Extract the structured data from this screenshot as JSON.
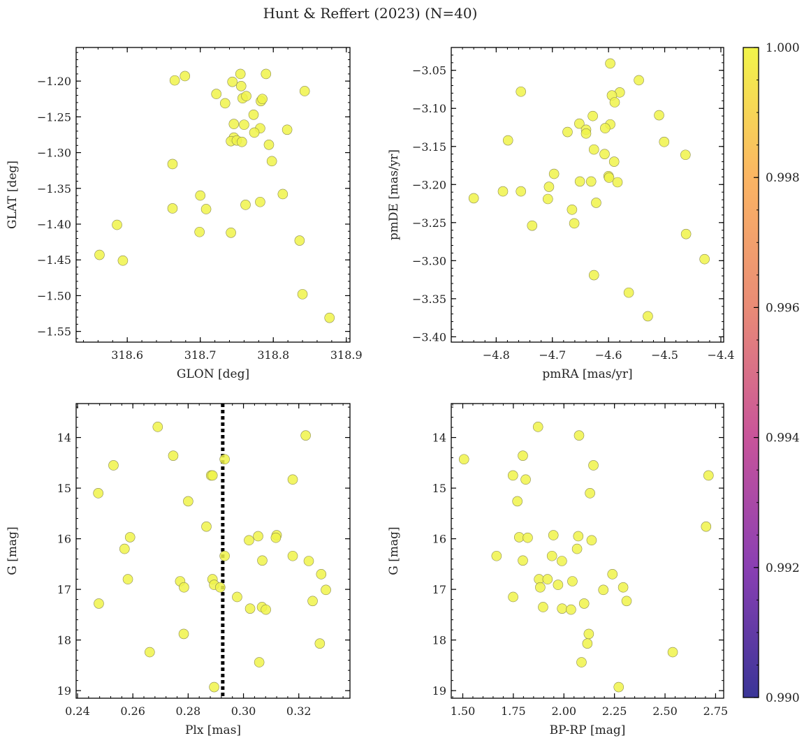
{
  "figure": {
    "title": "Hunt & Reffert (2023) (N=40)",
    "colormap": {
      "name": "plasma",
      "min": 0.99,
      "max": 1.0,
      "ticks": [
        "0.990",
        "0.992",
        "0.994",
        "0.996",
        "0.998",
        "1.000"
      ],
      "stops": [
        "#3a3597",
        "#8a3fb3",
        "#c8549a",
        "#e98b76",
        "#fbb563",
        "#f2f54a"
      ]
    },
    "marker_color": "#f0f34a",
    "marker_edge": "#8a8a50",
    "line_color": "#000000"
  },
  "chart_data": [
    {
      "type": "scatter",
      "title": "",
      "xlabel": "GLON [deg]",
      "ylabel": "GLAT [deg]",
      "xlim": [
        318.53,
        318.905
      ],
      "ylim": [
        -1.565,
        -1.153
      ],
      "xticks": [
        318.6,
        318.7,
        318.8,
        318.9
      ],
      "xticklabels": [
        "318.6",
        "318.7",
        "318.8",
        "318.9"
      ],
      "yticks": [
        -1.55,
        -1.5,
        -1.45,
        -1.4,
        -1.35,
        -1.3,
        -1.25,
        -1.2
      ],
      "yticklabels": [
        "−1.55",
        "−1.50",
        "−1.45",
        "−1.40",
        "−1.35",
        "−1.30",
        "−1.25",
        "−1.20"
      ],
      "points": [
        [
          318.665,
          -1.199
        ],
        [
          318.679,
          -1.193
        ],
        [
          318.744,
          -1.201
        ],
        [
          318.755,
          -1.19
        ],
        [
          318.79,
          -1.19
        ],
        [
          318.843,
          -1.214
        ],
        [
          318.722,
          -1.218
        ],
        [
          318.756,
          -1.207
        ],
        [
          318.758,
          -1.224
        ],
        [
          318.763,
          -1.221
        ],
        [
          318.783,
          -1.228
        ],
        [
          318.734,
          -1.231
        ],
        [
          318.773,
          -1.247
        ],
        [
          318.746,
          -1.26
        ],
        [
          318.76,
          -1.261
        ],
        [
          318.782,
          -1.266
        ],
        [
          318.819,
          -1.268
        ],
        [
          318.774,
          -1.272
        ],
        [
          318.746,
          -1.279
        ],
        [
          318.742,
          -1.284
        ],
        [
          318.75,
          -1.283
        ],
        [
          318.757,
          -1.285
        ],
        [
          318.794,
          -1.289
        ],
        [
          318.798,
          -1.312
        ],
        [
          318.662,
          -1.316
        ],
        [
          318.7,
          -1.36
        ],
        [
          318.813,
          -1.358
        ],
        [
          318.782,
          -1.369
        ],
        [
          318.762,
          -1.373
        ],
        [
          318.662,
          -1.378
        ],
        [
          318.708,
          -1.379
        ],
        [
          318.586,
          -1.401
        ],
        [
          318.699,
          -1.411
        ],
        [
          318.742,
          -1.412
        ],
        [
          318.836,
          -1.423
        ],
        [
          318.562,
          -1.443
        ],
        [
          318.594,
          -1.451
        ],
        [
          318.84,
          -1.498
        ],
        [
          318.877,
          -1.531
        ],
        [
          318.785,
          -1.225
        ]
      ]
    },
    {
      "type": "scatter",
      "title": "",
      "xlabel": "pmRA [mas/yr]",
      "ylabel": "pmDE [mas/yr]",
      "xlim": [
        -4.88,
        -4.395
      ],
      "ylim": [
        -3.407,
        -3.02
      ],
      "xticks": [
        -4.8,
        -4.7,
        -4.6,
        -4.5,
        -4.4
      ],
      "xticklabels": [
        "−4.8",
        "−4.7",
        "−4.6",
        "−4.5",
        "−4.4"
      ],
      "yticks": [
        -3.4,
        -3.35,
        -3.3,
        -3.25,
        -3.2,
        -3.15,
        -3.1,
        -3.05
      ],
      "yticklabels": [
        "−3.40",
        "−3.35",
        "−3.30",
        "−3.25",
        "−3.20",
        "−3.15",
        "−3.10",
        "−3.05"
      ],
      "points": [
        [
          -4.597,
          -3.041
        ],
        [
          -4.546,
          -3.063
        ],
        [
          -4.756,
          -3.078
        ],
        [
          -4.58,
          -3.079
        ],
        [
          -4.594,
          -3.083
        ],
        [
          -4.589,
          -3.092
        ],
        [
          -4.628,
          -3.11
        ],
        [
          -4.51,
          -3.109
        ],
        [
          -4.652,
          -3.12
        ],
        [
          -4.597,
          -3.121
        ],
        [
          -4.606,
          -3.126
        ],
        [
          -4.64,
          -3.128
        ],
        [
          -4.673,
          -3.131
        ],
        [
          -4.64,
          -3.133
        ],
        [
          -4.779,
          -3.142
        ],
        [
          -4.501,
          -3.144
        ],
        [
          -4.626,
          -3.154
        ],
        [
          -4.607,
          -3.16
        ],
        [
          -4.463,
          -3.161
        ],
        [
          -4.59,
          -3.17
        ],
        [
          -4.697,
          -3.186
        ],
        [
          -4.6,
          -3.189
        ],
        [
          -4.599,
          -3.191
        ],
        [
          -4.651,
          -3.196
        ],
        [
          -4.631,
          -3.196
        ],
        [
          -4.584,
          -3.197
        ],
        [
          -4.706,
          -3.203
        ],
        [
          -4.788,
          -3.209
        ],
        [
          -4.756,
          -3.209
        ],
        [
          -4.84,
          -3.218
        ],
        [
          -4.708,
          -3.219
        ],
        [
          -4.622,
          -3.224
        ],
        [
          -4.665,
          -3.233
        ],
        [
          -4.661,
          -3.251
        ],
        [
          -4.736,
          -3.254
        ],
        [
          -4.462,
          -3.265
        ],
        [
          -4.429,
          -3.298
        ],
        [
          -4.626,
          -3.319
        ],
        [
          -4.564,
          -3.342
        ],
        [
          -4.53,
          -3.373
        ]
      ]
    },
    {
      "type": "scatter",
      "title": "",
      "xlabel": "Plx [mas]",
      "ylabel": "G [mag]",
      "xlim": [
        0.2395,
        0.3385
      ],
      "ylim": [
        19.15,
        13.33
      ],
      "xticks": [
        0.24,
        0.26,
        0.28,
        0.3,
        0.32
      ],
      "xticklabels": [
        "0.24",
        "0.26",
        "0.28",
        "0.30",
        "0.32"
      ],
      "yticks": [
        14,
        15,
        16,
        17,
        18,
        19
      ],
      "yticklabels": [
        "14",
        "15",
        "16",
        "17",
        "18",
        "19"
      ],
      "vline": 0.2925,
      "points": [
        [
          0.269,
          13.79
        ],
        [
          0.3225,
          13.96
        ],
        [
          0.2746,
          14.36
        ],
        [
          0.2932,
          14.43
        ],
        [
          0.253,
          14.55
        ],
        [
          0.2883,
          14.75
        ],
        [
          0.2888,
          14.75
        ],
        [
          0.3178,
          14.83
        ],
        [
          0.2475,
          15.1
        ],
        [
          0.28,
          15.26
        ],
        [
          0.2866,
          15.76
        ],
        [
          0.312,
          15.93
        ],
        [
          0.3053,
          15.95
        ],
        [
          0.259,
          15.97
        ],
        [
          0.3117,
          15.98
        ],
        [
          0.302,
          16.03
        ],
        [
          0.257,
          16.2
        ],
        [
          0.2932,
          16.34
        ],
        [
          0.3178,
          16.34
        ],
        [
          0.3068,
          16.43
        ],
        [
          0.3236,
          16.44
        ],
        [
          0.3281,
          16.7
        ],
        [
          0.2582,
          16.8
        ],
        [
          0.2888,
          16.8
        ],
        [
          0.2771,
          16.84
        ],
        [
          0.2894,
          16.91
        ],
        [
          0.2916,
          16.96
        ],
        [
          0.2785,
          16.96
        ],
        [
          0.3298,
          17.01
        ],
        [
          0.2977,
          17.15
        ],
        [
          0.325,
          17.23
        ],
        [
          0.2477,
          17.28
        ],
        [
          0.3067,
          17.35
        ],
        [
          0.3024,
          17.38
        ],
        [
          0.3081,
          17.4
        ],
        [
          0.2784,
          17.88
        ],
        [
          0.3276,
          18.07
        ],
        [
          0.2661,
          18.24
        ],
        [
          0.3057,
          18.44
        ],
        [
          0.2894,
          18.93
        ]
      ]
    },
    {
      "type": "scatter",
      "title": "",
      "xlabel": "BP-RP [mag]",
      "ylabel": "G [mag]",
      "xlim": [
        1.443,
        2.79
      ],
      "ylim": [
        19.15,
        13.33
      ],
      "xticks": [
        1.5,
        1.75,
        2.0,
        2.25,
        2.5,
        2.75
      ],
      "xticklabels": [
        "1.50",
        "1.75",
        "2.00",
        "2.25",
        "2.50",
        "2.75"
      ],
      "yticks": [
        14,
        15,
        16,
        17,
        18,
        19
      ],
      "yticklabels": [
        "14",
        "15",
        "16",
        "17",
        "18",
        "19"
      ],
      "points": [
        [
          1.872,
          13.79
        ],
        [
          2.075,
          13.96
        ],
        [
          1.797,
          14.36
        ],
        [
          1.506,
          14.43
        ],
        [
          2.146,
          14.55
        ],
        [
          1.748,
          14.75
        ],
        [
          2.715,
          14.75
        ],
        [
          1.811,
          14.83
        ],
        [
          2.129,
          15.1
        ],
        [
          1.77,
          15.26
        ],
        [
          2.703,
          15.76
        ],
        [
          1.948,
          15.93
        ],
        [
          2.071,
          15.95
        ],
        [
          1.779,
          15.97
        ],
        [
          1.821,
          15.98
        ],
        [
          2.137,
          16.03
        ],
        [
          2.065,
          16.2
        ],
        [
          1.667,
          16.34
        ],
        [
          1.941,
          16.34
        ],
        [
          1.797,
          16.43
        ],
        [
          1.99,
          16.44
        ],
        [
          2.24,
          16.7
        ],
        [
          1.877,
          16.8
        ],
        [
          1.919,
          16.8
        ],
        [
          2.042,
          16.84
        ],
        [
          1.971,
          16.91
        ],
        [
          1.883,
          16.96
        ],
        [
          2.293,
          16.96
        ],
        [
          2.195,
          17.01
        ],
        [
          1.749,
          17.15
        ],
        [
          2.31,
          17.23
        ],
        [
          2.1,
          17.28
        ],
        [
          1.897,
          17.35
        ],
        [
          1.991,
          17.38
        ],
        [
          2.035,
          17.4
        ],
        [
          2.123,
          17.88
        ],
        [
          2.116,
          18.07
        ],
        [
          2.538,
          18.24
        ],
        [
          2.087,
          18.44
        ],
        [
          2.271,
          18.93
        ]
      ]
    }
  ]
}
